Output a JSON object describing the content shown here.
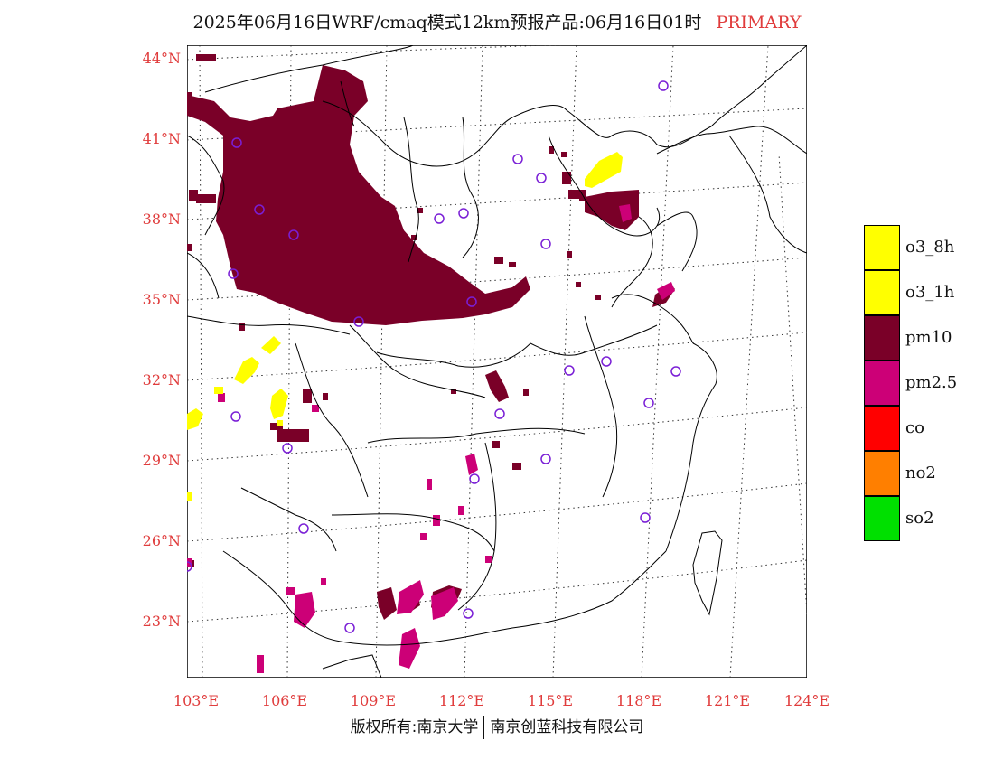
{
  "title": {
    "text": "2025年06月16日WRF/cmaq模式12km预报产品:06月16日01时",
    "tag": "PRIMARY"
  },
  "map": {
    "lat_labels": [
      "44°N",
      "41°N",
      "38°N",
      "35°N",
      "32°N",
      "29°N",
      "26°N",
      "23°N"
    ],
    "lon_labels": [
      "103°E",
      "106°E",
      "109°E",
      "112°E",
      "115°E",
      "118°E",
      "121°E",
      "124°E"
    ],
    "colors": {
      "pm10": "#7a0028",
      "o3": "#ffff00",
      "pm25": "#cc0077",
      "station": "#7a1fd6",
      "label": "#e03c3c"
    }
  },
  "legend": {
    "items": [
      {
        "label": "o3_8h",
        "color": "#ffff00"
      },
      {
        "label": "o3_1h",
        "color": "#ffff00"
      },
      {
        "label": "pm10",
        "color": "#7a0028"
      },
      {
        "label": "pm2.5",
        "color": "#cc0077"
      },
      {
        "label": "co",
        "color": "#ff0000"
      },
      {
        "label": "no2",
        "color": "#ff7f00"
      },
      {
        "label": "so2",
        "color": "#00e000"
      }
    ]
  },
  "footer": {
    "left": "版权所有:南京大学",
    "right": "南京创蓝科技有限公司"
  }
}
